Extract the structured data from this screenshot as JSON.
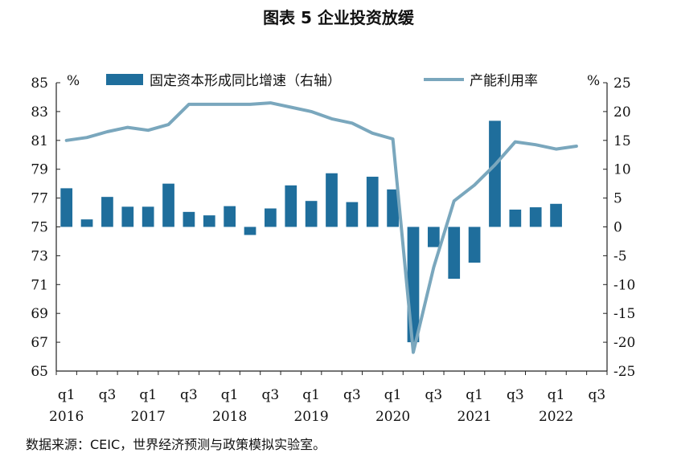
{
  "title": "图表 5 企业投资放缓",
  "source": "数据来源：CEIC，世界经济预测与政策模拟实验室。",
  "colors": {
    "bar": "#1f6e9c",
    "line": "#7aa7bd",
    "axis": "#222222"
  },
  "chart_data": {
    "type": "bar+line",
    "categories": [
      "2016q1",
      "2016q2",
      "2016q3",
      "2016q4",
      "2017q1",
      "2017q2",
      "2017q3",
      "2017q4",
      "2018q1",
      "2018q2",
      "2018q3",
      "2018q4",
      "2019q1",
      "2019q2",
      "2019q3",
      "2019q4",
      "2020q1",
      "2020q2",
      "2020q3",
      "2020q4",
      "2021q1",
      "2021q2",
      "2021q3",
      "2021q4",
      "2022q1",
      "2022q2",
      "2022q3"
    ],
    "x_tick_labels": [
      "q1",
      "q3",
      "q1",
      "q3",
      "q1",
      "q3",
      "q1",
      "q3",
      "q1",
      "q3",
      "q1",
      "q3",
      "q1",
      "q3"
    ],
    "year_labels": [
      "2016",
      "2017",
      "2018",
      "2019",
      "2020",
      "2021",
      "2022"
    ],
    "left_axis": {
      "unit": "%",
      "ylim": [
        65,
        85
      ],
      "ticks": [
        65,
        67,
        69,
        71,
        73,
        75,
        77,
        79,
        81,
        83,
        85
      ]
    },
    "right_axis": {
      "unit": "%",
      "ylim": [
        -25,
        25
      ],
      "ticks": [
        -25,
        -20,
        -15,
        -10,
        -5,
        0,
        5,
        10,
        15,
        20,
        25
      ]
    },
    "series": [
      {
        "name": "固定资本形成同比增速（右轴）",
        "type": "bar",
        "axis": "right",
        "values": [
          6.7,
          1.3,
          5.2,
          3.5,
          3.5,
          7.5,
          2.6,
          2.0,
          3.6,
          -1.4,
          3.2,
          7.2,
          4.5,
          9.3,
          4.3,
          8.7,
          6.5,
          -20.0,
          -3.5,
          -9.0,
          -6.2,
          18.4,
          3.0,
          3.4,
          4.0,
          null,
          null
        ]
      },
      {
        "name": "产能利用率",
        "type": "line",
        "axis": "left",
        "values": [
          81.0,
          81.2,
          81.6,
          81.9,
          81.7,
          82.1,
          83.5,
          83.5,
          83.5,
          83.5,
          83.6,
          83.3,
          83.0,
          82.5,
          82.2,
          81.5,
          81.1,
          66.3,
          72.2,
          76.8,
          77.9,
          79.3,
          80.9,
          80.7,
          80.4,
          80.6,
          null
        ]
      }
    ]
  }
}
